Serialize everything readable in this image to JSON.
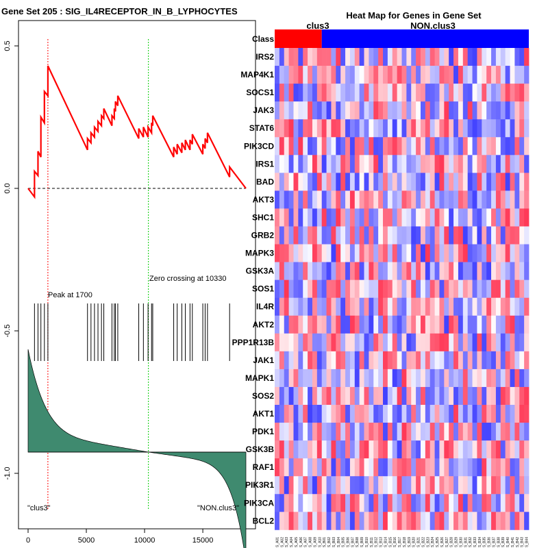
{
  "chart_data": [
    {
      "type": "line",
      "title": "Gene Set  205 : SIG_IL4RECEPTOR_IN_B_LYPHOCYTES",
      "xlim": [
        0,
        18700
      ],
      "ylim": [
        -1.12,
        0.62
      ],
      "x_ticks": [
        0,
        5000,
        10000,
        15000
      ],
      "x_tick_labels": [
        "0",
        "5000",
        "10000",
        "15000"
      ],
      "y_ticks": [
        0.5,
        0.0,
        -0.5,
        -1.0
      ],
      "y_tick_labels": [
        "0.5",
        "0.0",
        "-0.5",
        "-1.0"
      ],
      "peak": {
        "x": 1700,
        "label": "Peak at 1700"
      },
      "zero_crossing": {
        "x": 10330,
        "label": "Zero crossing at 10330"
      },
      "hit_positions": [
        550,
        850,
        1100,
        1400,
        1700,
        5100,
        5400,
        5700,
        6000,
        6300,
        6500,
        7200,
        7400,
        7500,
        7700,
        9500,
        9900,
        10300,
        10600,
        10700,
        12500,
        12800,
        13200,
        13500,
        13900,
        14100,
        15000,
        15200,
        15400,
        17300
      ],
      "series": [
        {
          "x": [
            0,
            550,
            550,
            850,
            850,
            1100,
            1100,
            1400,
            1400,
            1700,
            1700,
            5100,
            5100,
            5400,
            5400,
            5700,
            5700,
            6000,
            6000,
            6300,
            6300,
            6500,
            6500,
            7200,
            7200,
            7400,
            7400,
            7500,
            7500,
            7700,
            7700,
            9500,
            9500,
            9900,
            9900,
            10300,
            10300,
            10600,
            10600,
            10700,
            10700,
            12500,
            12500,
            12800,
            12800,
            13200,
            13200,
            13500,
            13500,
            13900,
            13900,
            14100,
            14100,
            15000,
            15000,
            15200,
            15200,
            15400,
            15400,
            17300,
            17300,
            18700
          ],
          "y": [
            0.0,
            -0.03,
            0.06,
            0.045,
            0.13,
            0.11,
            0.25,
            0.23,
            0.34,
            0.325,
            0.43,
            0.135,
            0.175,
            0.16,
            0.195,
            0.18,
            0.215,
            0.2,
            0.235,
            0.22,
            0.255,
            0.245,
            0.28,
            0.22,
            0.255,
            0.245,
            0.28,
            0.27,
            0.305,
            0.29,
            0.325,
            0.175,
            0.21,
            0.18,
            0.215,
            0.18,
            0.215,
            0.195,
            0.23,
            0.22,
            0.255,
            0.11,
            0.145,
            0.12,
            0.155,
            0.125,
            0.16,
            0.135,
            0.17,
            0.135,
            0.17,
            0.155,
            0.19,
            0.12,
            0.155,
            0.14,
            0.175,
            0.16,
            0.195,
            0.04,
            0.075,
            0.0
          ]
        }
      ],
      "bottom_left_label": "\"clus3\"",
      "bottom_right_label": "\"NON.clus3\"",
      "colors": {
        "enrichment": "#ff0000",
        "metric": "#3f8a6f",
        "peak_line": "#ff0000",
        "zero_line": "#00cc00"
      }
    },
    {
      "type": "heatmap",
      "title": "Heat Map for Genes in Gene Set",
      "class_row_label": "Class",
      "class_labels": [
        "clus3",
        "NON.clus3"
      ],
      "class_sample_counts": [
        10,
        44
      ],
      "genes": [
        "IRS2",
        "MAP4K1",
        "SOCS1",
        "JAK3",
        "STAT6",
        "PIK3CD",
        "IRS1",
        "BAD",
        "AKT3",
        "SHC1",
        "GRB2",
        "MAPK3",
        "GSK3A",
        "SOS1",
        "IL4R",
        "AKT2",
        "PPP1R13B",
        "JAK1",
        "MAPK1",
        "SOS2",
        "AKT1",
        "PDK1",
        "GSK3B",
        "RAF1",
        "PIK3R1",
        "PIK3CA",
        "BCL2"
      ],
      "sample_labels": [
        "S_A01",
        "S_A02",
        "S_A03",
        "S_A04",
        "S_A05",
        "S_A06",
        "S_A07",
        "S_A08",
        "S_A09",
        "S_A10",
        "S_B01",
        "S_B02",
        "S_B03",
        "S_B04",
        "S_B05",
        "S_B06",
        "S_B07",
        "S_B08",
        "S_B09",
        "S_B10",
        "S_B11",
        "S_B12",
        "S_B13",
        "S_B14",
        "S_B15",
        "S_B16",
        "S_B17",
        "S_B18",
        "S_B19",
        "S_B20",
        "S_B21",
        "S_B22",
        "S_B23",
        "S_B24",
        "S_B25",
        "S_B26",
        "S_B27",
        "S_B28",
        "S_B29",
        "S_B30",
        "S_B31",
        "S_B32",
        "S_B33",
        "S_B34",
        "S_B35",
        "S_B36",
        "S_B37",
        "S_B38",
        "S_B39",
        "S_B40",
        "S_B41",
        "S_B42",
        "S_B43",
        "S_B44"
      ],
      "colors": {
        "high": "#ff0000",
        "low": "#0000ff",
        "mid": "#ffffff",
        "class_clus3": "#ff0000",
        "class_non": "#0000ff"
      }
    }
  ]
}
